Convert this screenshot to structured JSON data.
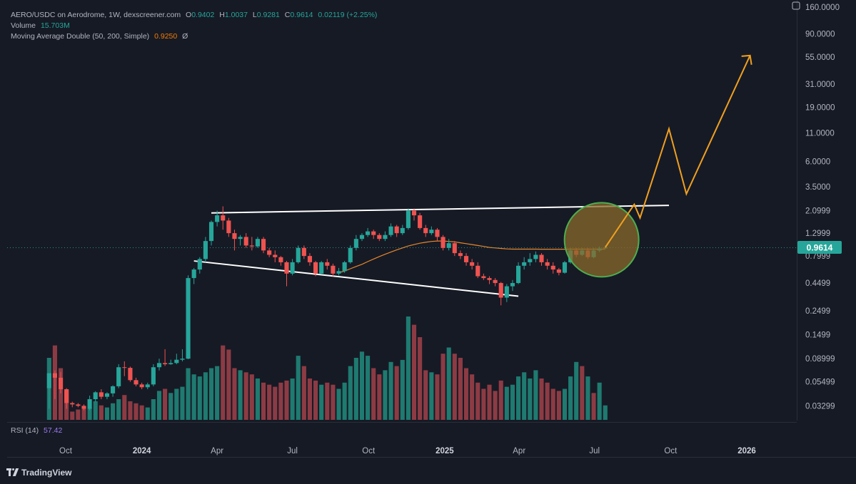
{
  "legend": {
    "title": "AERO/USDC on Aerodrome, 1W, dexscreener.com",
    "o_label": "O",
    "o": "0.9402",
    "h_label": "H",
    "h": "1.0037",
    "l_label": "L",
    "l": "0.9281",
    "c_label": "C",
    "c": "0.9614",
    "change": "0.02119 (+2.25%)",
    "volume_label": "Volume",
    "volume": "15.703M",
    "ma_label": "Moving Average Double (50, 200, Simple)",
    "ma_value": "0.9250",
    "ma_extra": "Ø",
    "rsi_label": "RSI (14)",
    "rsi_value": "57.42"
  },
  "brand": "TradingView",
  "colors": {
    "background": "#161a25",
    "up": "#26a69a",
    "down": "#ef5350",
    "volume_up": "#1f7a70",
    "volume_down": "#8c3b44",
    "ma": "#e8862a",
    "projection": "#f0a020",
    "trendline": "#ffffff",
    "highlight_fill": "#8a6a2a",
    "highlight_stroke": "#4caf50",
    "price_badge": "#26a69a"
  },
  "chart_data": {
    "type": "candlestick",
    "scale": "log",
    "price_axis_labels": [
      "160.0000",
      "90.0000",
      "55.0000",
      "31.0000",
      "19.0000",
      "11.0000",
      "6.0000",
      "3.5000",
      "2.0999",
      "1.2999",
      "0.7999",
      "0.4499",
      "0.2499",
      "0.1499",
      "0.08999",
      "0.05499",
      "0.03299"
    ],
    "price_axis_values": [
      160,
      90,
      55,
      31,
      19,
      11,
      6,
      3.5,
      2.0999,
      1.2999,
      0.7999,
      0.4499,
      0.2499,
      0.1499,
      0.08999,
      0.05499,
      0.03299
    ],
    "time_axis_labels": [
      "Oct",
      "2024",
      "Apr",
      "Jul",
      "Oct",
      "2025",
      "Apr",
      "Jul",
      "Oct",
      "2026"
    ],
    "time_axis_dates": [
      "2023-10-01",
      "2024-01-01",
      "2024-04-01",
      "2024-07-01",
      "2024-10-01",
      "2025-01-01",
      "2025-04-01",
      "2025-07-01",
      "2025-10-01",
      "2026-01-01"
    ],
    "bold_time_labels": [
      "2024",
      "2025",
      "2026"
    ],
    "last_price": "0.9614",
    "weeks_start": "2023-09-11",
    "candles": [
      [
        0.048,
        0.066,
        0.031,
        0.066
      ],
      [
        0.066,
        0.06,
        0.038,
        0.07
      ],
      [
        0.06,
        0.047,
        0.043,
        0.068
      ],
      [
        0.047,
        0.035,
        0.031,
        0.048
      ],
      [
        0.035,
        0.034,
        0.032,
        0.036
      ],
      [
        0.034,
        0.033,
        0.032,
        0.035
      ],
      [
        0.033,
        0.031,
        0.03,
        0.034
      ],
      [
        0.031,
        0.038,
        0.03,
        0.041
      ],
      [
        0.038,
        0.044,
        0.036,
        0.045
      ],
      [
        0.044,
        0.04,
        0.038,
        0.047
      ],
      [
        0.04,
        0.043,
        0.038,
        0.044
      ],
      [
        0.043,
        0.05,
        0.04,
        0.051
      ],
      [
        0.05,
        0.075,
        0.048,
        0.08
      ],
      [
        0.075,
        0.074,
        0.062,
        0.085
      ],
      [
        0.074,
        0.057,
        0.055,
        0.076
      ],
      [
        0.057,
        0.052,
        0.05,
        0.06
      ],
      [
        0.052,
        0.049,
        0.047,
        0.054
      ],
      [
        0.049,
        0.052,
        0.047,
        0.054
      ],
      [
        0.052,
        0.075,
        0.05,
        0.08
      ],
      [
        0.075,
        0.082,
        0.07,
        0.09
      ],
      [
        0.082,
        0.08,
        0.077,
        0.11
      ],
      [
        0.08,
        0.082,
        0.079,
        0.088
      ],
      [
        0.082,
        0.088,
        0.08,
        0.1
      ],
      [
        0.088,
        0.09,
        0.085,
        0.11
      ],
      [
        0.09,
        0.5,
        0.089,
        0.53
      ],
      [
        0.5,
        0.6,
        0.44,
        0.62
      ],
      [
        0.6,
        0.75,
        0.55,
        0.78
      ],
      [
        0.75,
        1.1,
        0.7,
        1.2
      ],
      [
        1.1,
        1.65,
        1.0,
        1.7
      ],
      [
        1.65,
        1.9,
        1.5,
        2.1
      ],
      [
        1.9,
        1.7,
        1.4,
        2.3
      ],
      [
        1.7,
        1.3,
        1.2,
        1.8
      ],
      [
        1.3,
        1.15,
        0.9,
        1.4
      ],
      [
        1.15,
        1.2,
        1.0,
        1.25
      ],
      [
        1.2,
        1.0,
        0.95,
        1.3
      ],
      [
        1.0,
        0.98,
        0.9,
        1.2
      ],
      [
        0.98,
        1.15,
        0.95,
        1.2
      ],
      [
        1.15,
        0.9,
        0.85,
        1.2
      ],
      [
        0.9,
        0.82,
        0.78,
        0.95
      ],
      [
        0.82,
        0.78,
        0.7,
        0.9
      ],
      [
        0.78,
        0.7,
        0.65,
        0.8
      ],
      [
        0.7,
        0.55,
        0.42,
        0.72
      ],
      [
        0.55,
        0.7,
        0.53,
        0.75
      ],
      [
        0.7,
        0.95,
        0.68,
        1.0
      ],
      [
        0.95,
        0.8,
        0.75,
        1.0
      ],
      [
        0.8,
        0.7,
        0.65,
        0.85
      ],
      [
        0.7,
        0.55,
        0.52,
        0.72
      ],
      [
        0.55,
        0.7,
        0.54,
        0.72
      ],
      [
        0.7,
        0.65,
        0.6,
        0.75
      ],
      [
        0.65,
        0.55,
        0.52,
        0.68
      ],
      [
        0.55,
        0.58,
        0.53,
        0.62
      ],
      [
        0.58,
        0.7,
        0.56,
        0.72
      ],
      [
        0.7,
        0.95,
        0.68,
        1.0
      ],
      [
        0.95,
        1.15,
        0.9,
        1.25
      ],
      [
        1.15,
        1.25,
        1.1,
        1.3
      ],
      [
        1.25,
        1.35,
        1.2,
        1.45
      ],
      [
        1.35,
        1.25,
        1.15,
        1.4
      ],
      [
        1.25,
        1.15,
        1.1,
        1.3
      ],
      [
        1.15,
        1.25,
        1.1,
        1.35
      ],
      [
        1.25,
        1.5,
        1.2,
        1.6
      ],
      [
        1.5,
        1.3,
        1.2,
        1.55
      ],
      [
        1.3,
        1.45,
        1.25,
        1.55
      ],
      [
        1.45,
        2.1,
        1.4,
        2.2
      ],
      [
        2.1,
        1.9,
        1.7,
        2.2
      ],
      [
        1.9,
        1.45,
        1.4,
        2.0
      ],
      [
        1.45,
        1.3,
        1.2,
        1.55
      ],
      [
        1.3,
        1.4,
        1.25,
        1.5
      ],
      [
        1.4,
        1.2,
        1.1,
        1.45
      ],
      [
        1.2,
        0.95,
        0.9,
        1.25
      ],
      [
        0.95,
        1.05,
        0.9,
        1.15
      ],
      [
        1.05,
        0.85,
        0.8,
        1.1
      ],
      [
        0.85,
        0.8,
        0.75,
        0.9
      ],
      [
        0.8,
        0.7,
        0.65,
        0.85
      ],
      [
        0.7,
        0.65,
        0.6,
        0.75
      ],
      [
        0.65,
        0.52,
        0.5,
        0.7
      ],
      [
        0.52,
        0.5,
        0.48,
        0.55
      ],
      [
        0.5,
        0.48,
        0.44,
        0.52
      ],
      [
        0.48,
        0.45,
        0.42,
        0.5
      ],
      [
        0.45,
        0.33,
        0.28,
        0.46
      ],
      [
        0.33,
        0.42,
        0.3,
        0.44
      ],
      [
        0.42,
        0.45,
        0.38,
        0.48
      ],
      [
        0.45,
        0.65,
        0.44,
        0.7
      ],
      [
        0.65,
        0.7,
        0.6,
        0.78
      ],
      [
        0.7,
        0.75,
        0.65,
        0.85
      ],
      [
        0.75,
        0.82,
        0.7,
        0.88
      ],
      [
        0.82,
        0.7,
        0.65,
        0.85
      ],
      [
        0.7,
        0.65,
        0.6,
        0.75
      ],
      [
        0.65,
        0.6,
        0.55,
        0.7
      ],
      [
        0.6,
        0.56,
        0.53,
        0.62
      ],
      [
        0.56,
        0.7,
        0.55,
        0.72
      ],
      [
        0.7,
        0.9,
        0.68,
        0.95
      ],
      [
        0.9,
        0.82,
        0.78,
        0.95
      ],
      [
        0.82,
        0.9,
        0.8,
        0.95
      ],
      [
        0.9,
        0.78,
        0.75,
        0.95
      ],
      [
        0.78,
        0.9,
        0.76,
        0.95
      ],
      [
        0.9,
        0.94,
        0.87,
        0.98
      ],
      [
        0.9402,
        0.9614,
        0.9281,
        1.0037
      ]
    ],
    "volume_bars": [
      [
        0.6,
        1
      ],
      [
        0.72,
        0
      ],
      [
        0.5,
        0
      ],
      [
        0.28,
        0
      ],
      [
        0.08,
        0
      ],
      [
        0.1,
        0
      ],
      [
        0.12,
        0
      ],
      [
        0.12,
        1
      ],
      [
        0.18,
        1
      ],
      [
        0.14,
        0
      ],
      [
        0.12,
        1
      ],
      [
        0.16,
        1
      ],
      [
        0.2,
        1
      ],
      [
        0.24,
        0
      ],
      [
        0.18,
        0
      ],
      [
        0.16,
        0
      ],
      [
        0.14,
        0
      ],
      [
        0.12,
        1
      ],
      [
        0.2,
        1
      ],
      [
        0.28,
        1
      ],
      [
        0.3,
        0
      ],
      [
        0.26,
        1
      ],
      [
        0.3,
        1
      ],
      [
        0.32,
        1
      ],
      [
        0.5,
        1
      ],
      [
        0.44,
        1
      ],
      [
        0.42,
        1
      ],
      [
        0.46,
        1
      ],
      [
        0.5,
        1
      ],
      [
        0.52,
        1
      ],
      [
        0.72,
        0
      ],
      [
        0.68,
        0
      ],
      [
        0.5,
        0
      ],
      [
        0.48,
        1
      ],
      [
        0.46,
        0
      ],
      [
        0.44,
        0
      ],
      [
        0.4,
        1
      ],
      [
        0.36,
        0
      ],
      [
        0.34,
        0
      ],
      [
        0.32,
        0
      ],
      [
        0.36,
        0
      ],
      [
        0.38,
        0
      ],
      [
        0.4,
        1
      ],
      [
        0.62,
        1
      ],
      [
        0.52,
        0
      ],
      [
        0.4,
        0
      ],
      [
        0.38,
        0
      ],
      [
        0.34,
        1
      ],
      [
        0.36,
        0
      ],
      [
        0.34,
        0
      ],
      [
        0.3,
        1
      ],
      [
        0.36,
        1
      ],
      [
        0.52,
        1
      ],
      [
        0.6,
        1
      ],
      [
        0.66,
        1
      ],
      [
        0.62,
        1
      ],
      [
        0.5,
        0
      ],
      [
        0.44,
        0
      ],
      [
        0.48,
        1
      ],
      [
        0.56,
        1
      ],
      [
        0.52,
        0
      ],
      [
        0.58,
        1
      ],
      [
        1.0,
        1
      ],
      [
        0.92,
        0
      ],
      [
        0.8,
        0
      ],
      [
        0.48,
        0
      ],
      [
        0.46,
        1
      ],
      [
        0.44,
        0
      ],
      [
        0.64,
        0
      ],
      [
        0.7,
        1
      ],
      [
        0.64,
        0
      ],
      [
        0.6,
        0
      ],
      [
        0.5,
        0
      ],
      [
        0.44,
        0
      ],
      [
        0.36,
        0
      ],
      [
        0.3,
        0
      ],
      [
        0.34,
        0
      ],
      [
        0.28,
        0
      ],
      [
        0.38,
        0
      ],
      [
        0.32,
        1
      ],
      [
        0.34,
        1
      ],
      [
        0.42,
        1
      ],
      [
        0.46,
        1
      ],
      [
        0.4,
        1
      ],
      [
        0.48,
        1
      ],
      [
        0.4,
        0
      ],
      [
        0.36,
        0
      ],
      [
        0.3,
        0
      ],
      [
        0.28,
        0
      ],
      [
        0.3,
        1
      ],
      [
        0.42,
        1
      ],
      [
        0.56,
        1
      ],
      [
        0.52,
        0
      ],
      [
        0.42,
        1
      ],
      [
        0.26,
        0
      ],
      [
        0.36,
        1
      ],
      [
        0.14,
        1
      ]
    ],
    "moving_average": {
      "name": "Moving Average Double (50, 200, Simple)",
      "start_week": 50,
      "values": [
        0.56,
        0.58,
        0.61,
        0.64,
        0.67,
        0.71,
        0.75,
        0.79,
        0.83,
        0.87,
        0.91,
        0.95,
        0.99,
        1.02,
        1.05,
        1.07,
        1.09,
        1.1,
        1.1,
        1.09,
        1.08,
        1.06,
        1.04,
        1.02,
        1.0,
        0.98,
        0.96,
        0.95,
        0.94,
        0.93,
        0.925,
        0.925,
        0.925,
        0.925,
        0.925,
        0.924,
        0.924,
        0.924,
        0.924,
        0.924,
        0.925,
        0.925,
        0.925,
        0.925,
        0.925,
        0.925,
        0.925
      ]
    },
    "trendlines": [
      {
        "from": [
          "2024-03-25",
          2.0
        ],
        "to": [
          "2025-09-29",
          2.35
        ]
      },
      {
        "from": [
          "2024-03-04",
          0.72
        ],
        "to": [
          "2025-03-31",
          0.34
        ]
      }
    ],
    "projection": [
      [
        "2025-07-14",
        0.96
      ],
      [
        "2025-08-18",
        2.4
      ],
      [
        "2025-08-25",
        1.8
      ],
      [
        "2025-09-29",
        12.0
      ],
      [
        "2025-10-20",
        3.0
      ],
      [
        "2026-01-05",
        57.0
      ]
    ],
    "highlight_circle": {
      "center": [
        "2025-07-07",
        1.0
      ]
    }
  }
}
